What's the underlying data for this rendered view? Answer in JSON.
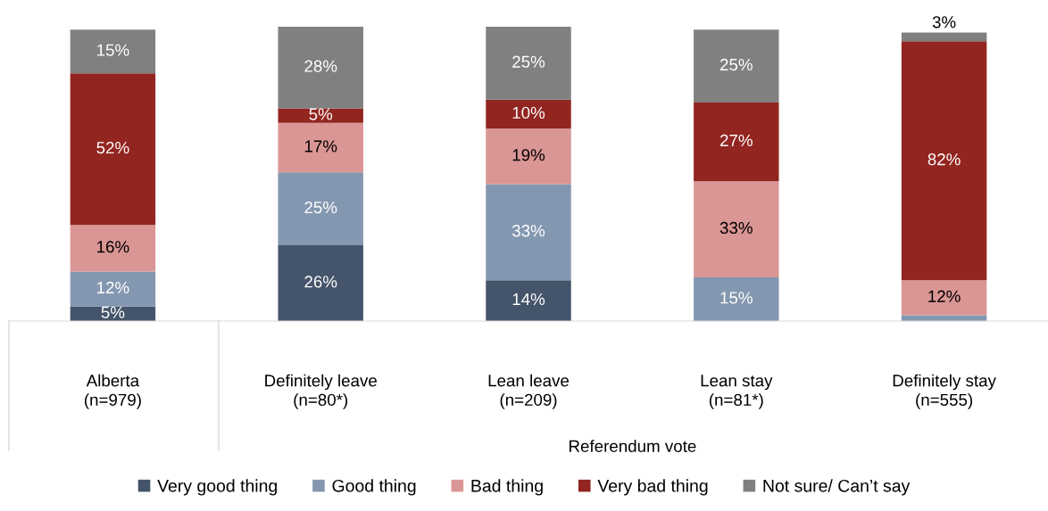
{
  "chart_data": {
    "type": "bar",
    "stacked": true,
    "data_labels": false,
    "categories": [
      "Alberta\n(n=979)",
      "Definitely leave\n(n=80*)",
      "Lean leave\n(n=209)",
      "Lean stay\n(n=81*)",
      "Definitely stay\n(n=555)"
    ],
    "xlabel": "Referendum vote",
    "ylim": [
      0,
      101
    ],
    "series": [
      {
        "name": "Very good thing",
        "color": "#44546a",
        "values": [
          5,
          26,
          14,
          0,
          0
        ],
        "value_labels": [
          "5%",
          "26%",
          "14%",
          null,
          null
        ]
      },
      {
        "name": "Good thing",
        "color": "#8497b0",
        "values": [
          12,
          25,
          33,
          15,
          2
        ],
        "value_labels": [
          "12%",
          "25%",
          "33%",
          "15%",
          null
        ]
      },
      {
        "name": "Bad thing",
        "color": "#da9694",
        "values": [
          16,
          17,
          19,
          33,
          12
        ],
        "value_labels": [
          "16%",
          "17%",
          "19%",
          "33%",
          "12%"
        ]
      },
      {
        "name": "Very bad thing",
        "color": "#922520",
        "values": [
          52,
          5,
          10,
          27,
          82
        ],
        "value_labels": [
          "52%",
          "5%",
          "10%",
          "27%",
          "82%"
        ]
      },
      {
        "name": "Not sure/ Can’t say",
        "color": "#808080",
        "values": [
          15,
          28,
          25,
          25,
          3
        ],
        "value_labels": [
          "15%",
          "28%",
          "25%",
          "25%",
          "3%"
        ]
      }
    ],
    "legend": "bottom"
  }
}
